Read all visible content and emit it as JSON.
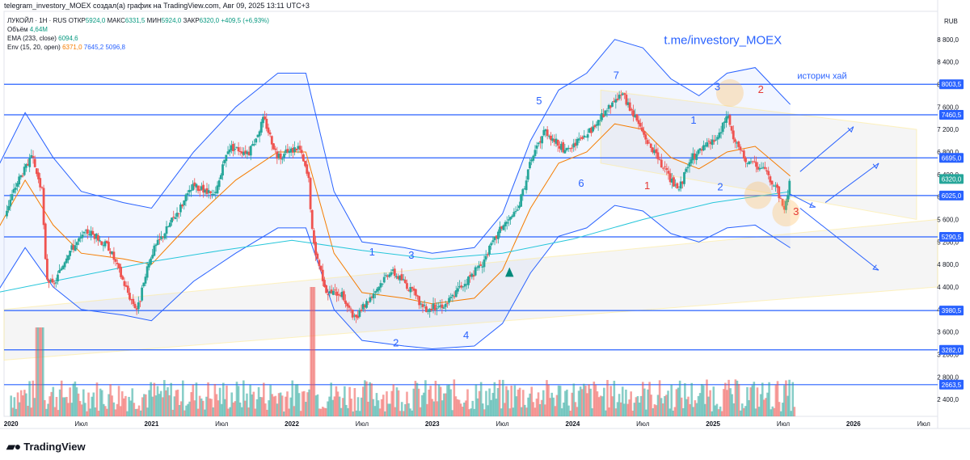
{
  "header": {
    "title": "telegram_investory_MOEX создал(а) график на TradingView.com, Авг 09, 2025 13:11 UTC+3"
  },
  "legend": {
    "symbol": "ЛУКОЙЛ · 1Н · RUS",
    "o_label": "ОТКР",
    "o_val": "5924,0",
    "h_label": "МАКС",
    "h_val": "6331,5",
    "l_label": "МИН",
    "l_val": "5924,0",
    "c_label": "ЗАКР",
    "c_val": "6320,0",
    "change": "+409,5 (+6,93%)",
    "volume_label": "Объём",
    "volume_val": "4,64M",
    "ema_label": "EMA (233, close)",
    "ema_val": "6094,6",
    "env_label": "Env (15, 20, open)",
    "env_basis": "6371,0",
    "env_upper": "7645,2",
    "env_lower": "5096,8"
  },
  "currency": "RUB",
  "footer": {
    "brand": "TradingView"
  },
  "annotations": {
    "channel": "t.me/investory_MOEX",
    "ath": "историч хай"
  },
  "colors": {
    "up": "#26a69a",
    "down": "#ef5350",
    "level": "#2962ff",
    "ema": "#26c6da",
    "env_basis": "#f57c00",
    "env_band": "#2962ff",
    "wave_blue": "#2962ff",
    "wave_red": "#e53935"
  },
  "chart_data": {
    "type": "candlestick",
    "title": "ЛУКОЙЛ · 1Н · RUS",
    "x_ticks": [
      "2020",
      "Июл",
      "2021",
      "Июл",
      "2022",
      "Июл",
      "2023",
      "Июл",
      "2024",
      "Июл",
      "2025",
      "Июл",
      "2026",
      "Июл"
    ],
    "x_tick_years": [
      2020.0,
      2020.5,
      2021.0,
      2021.5,
      2022.0,
      2022.5,
      2023.0,
      2023.5,
      2024.0,
      2024.5,
      2025.0,
      2025.5,
      2026.0,
      2026.5
    ],
    "y_ticks": [
      2400,
      2800,
      3200,
      3600,
      4000,
      4400,
      4800,
      5200,
      5600,
      6000,
      6400,
      6800,
      7200,
      7600,
      8000,
      8400,
      8800
    ],
    "y_tick_labels": [
      "2 400,0",
      "2 800,0",
      "3 200,0",
      "3 600,0",
      "4 000,0",
      "4 400,0",
      "4 800,0",
      "5 200,0",
      "5 600,0",
      "6 000,0",
      "6 400,0",
      "6 800,0",
      "7 200,0",
      "7 600,0",
      "8 000,0",
      "8 400,0",
      "8 800,0"
    ],
    "ylim": [
      2100,
      9300
    ],
    "levels": [
      {
        "value": 8003.5,
        "label": "8003,5"
      },
      {
        "value": 7460.5,
        "label": "7460,5"
      },
      {
        "value": 6695.0,
        "label": "6695,0"
      },
      {
        "value": 6320.0,
        "label": "6320,0",
        "current": true
      },
      {
        "value": 6025.0,
        "label": "6025,0"
      },
      {
        "value": 5290.5,
        "label": "5290,5"
      },
      {
        "value": 3980.5,
        "label": "3980,5"
      },
      {
        "value": 3282.0,
        "label": "3282,0"
      },
      {
        "value": 2663.5,
        "label": "2663,5"
      }
    ],
    "price_path": [
      [
        2019.9,
        5350
      ],
      [
        2020.05,
        6300
      ],
      [
        2020.15,
        6700
      ],
      [
        2020.22,
        6100
      ],
      [
        2020.25,
        4600
      ],
      [
        2020.3,
        4400
      ],
      [
        2020.4,
        5000
      ],
      [
        2020.55,
        5400
      ],
      [
        2020.7,
        5100
      ],
      [
        2020.85,
        4200
      ],
      [
        2020.9,
        4000
      ],
      [
        2021.0,
        5000
      ],
      [
        2021.15,
        5600
      ],
      [
        2021.3,
        6200
      ],
      [
        2021.45,
        6000
      ],
      [
        2021.55,
        6900
      ],
      [
        2021.7,
        6800
      ],
      [
        2021.8,
        7400
      ],
      [
        2021.9,
        6700
      ],
      [
        2022.05,
        6900
      ],
      [
        2022.12,
        6300
      ],
      [
        2022.15,
        5200
      ],
      [
        2022.25,
        4300
      ],
      [
        2022.35,
        4300
      ],
      [
        2022.45,
        3800
      ],
      [
        2022.55,
        4200
      ],
      [
        2022.7,
        4700
      ],
      [
        2022.8,
        4500
      ],
      [
        2022.95,
        4000
      ],
      [
        2023.1,
        4100
      ],
      [
        2023.2,
        4400
      ],
      [
        2023.35,
        4800
      ],
      [
        2023.5,
        5500
      ],
      [
        2023.6,
        5700
      ],
      [
        2023.7,
        6600
      ],
      [
        2023.8,
        7200
      ],
      [
        2023.95,
        6800
      ],
      [
        2024.1,
        7100
      ],
      [
        2024.2,
        7400
      ],
      [
        2024.3,
        7700
      ],
      [
        2024.35,
        7850
      ],
      [
        2024.45,
        7400
      ],
      [
        2024.55,
        6900
      ],
      [
        2024.65,
        6500
      ],
      [
        2024.75,
        6100
      ],
      [
        2024.85,
        6700
      ],
      [
        2024.95,
        6900
      ],
      [
        2025.05,
        7100
      ],
      [
        2025.1,
        7500
      ],
      [
        2025.15,
        7000
      ],
      [
        2025.25,
        6600
      ],
      [
        2025.35,
        6500
      ],
      [
        2025.45,
        6200
      ],
      [
        2025.5,
        5800
      ],
      [
        2025.52,
        5900
      ],
      [
        2025.55,
        6320
      ]
    ],
    "ema233_path": [
      [
        2019.9,
        4300
      ],
      [
        2020.5,
        4600
      ],
      [
        2021.0,
        4850
      ],
      [
        2021.5,
        5050
      ],
      [
        2022.0,
        5230
      ],
      [
        2022.5,
        5050
      ],
      [
        2023.0,
        4900
      ],
      [
        2023.5,
        5000
      ],
      [
        2024.0,
        5250
      ],
      [
        2024.5,
        5600
      ],
      [
        2025.0,
        5900
      ],
      [
        2025.55,
        6095
      ]
    ],
    "env_basis_path": [
      [
        2019.9,
        5400
      ],
      [
        2020.1,
        6300
      ],
      [
        2020.3,
        5500
      ],
      [
        2020.5,
        5000
      ],
      [
        2020.8,
        4900
      ],
      [
        2021.0,
        4800
      ],
      [
        2021.3,
        5600
      ],
      [
        2021.6,
        6300
      ],
      [
        2021.9,
        6800
      ],
      [
        2022.1,
        6800
      ],
      [
        2022.3,
        5000
      ],
      [
        2022.5,
        4300
      ],
      [
        2022.8,
        4200
      ],
      [
        2023.0,
        4100
      ],
      [
        2023.3,
        4200
      ],
      [
        2023.5,
        4700
      ],
      [
        2023.7,
        5800
      ],
      [
        2023.9,
        6600
      ],
      [
        2024.1,
        6800
      ],
      [
        2024.3,
        7300
      ],
      [
        2024.5,
        7200
      ],
      [
        2024.7,
        6700
      ],
      [
        2024.9,
        6500
      ],
      [
        2025.1,
        6800
      ],
      [
        2025.3,
        6900
      ],
      [
        2025.55,
        6371
      ]
    ],
    "env_upper_path": [
      [
        2019.9,
        6500
      ],
      [
        2020.1,
        7500
      ],
      [
        2020.3,
        6700
      ],
      [
        2020.5,
        6100
      ],
      [
        2020.8,
        5900
      ],
      [
        2021.0,
        5800
      ],
      [
        2021.3,
        6800
      ],
      [
        2021.6,
        7600
      ],
      [
        2021.9,
        8200
      ],
      [
        2022.1,
        8200
      ],
      [
        2022.3,
        6100
      ],
      [
        2022.5,
        5200
      ],
      [
        2022.8,
        5100
      ],
      [
        2023.0,
        5000
      ],
      [
        2023.3,
        5100
      ],
      [
        2023.5,
        5700
      ],
      [
        2023.7,
        7000
      ],
      [
        2023.9,
        7900
      ],
      [
        2024.1,
        8200
      ],
      [
        2024.3,
        8800
      ],
      [
        2024.5,
        8650
      ],
      [
        2024.7,
        8100
      ],
      [
        2024.9,
        7800
      ],
      [
        2025.1,
        8200
      ],
      [
        2025.3,
        8300
      ],
      [
        2025.55,
        7645
      ]
    ],
    "env_lower_path": [
      [
        2019.9,
        4300
      ],
      [
        2020.1,
        5100
      ],
      [
        2020.3,
        4400
      ],
      [
        2020.5,
        4000
      ],
      [
        2020.8,
        3900
      ],
      [
        2021.0,
        3800
      ],
      [
        2021.3,
        4500
      ],
      [
        2021.6,
        5000
      ],
      [
        2021.9,
        5450
      ],
      [
        2022.1,
        5450
      ],
      [
        2022.3,
        4000
      ],
      [
        2022.5,
        3450
      ],
      [
        2022.8,
        3350
      ],
      [
        2023.0,
        3300
      ],
      [
        2023.3,
        3350
      ],
      [
        2023.5,
        3750
      ],
      [
        2023.7,
        4650
      ],
      [
        2023.9,
        5300
      ],
      [
        2024.1,
        5450
      ],
      [
        2024.3,
        5850
      ],
      [
        2024.5,
        5750
      ],
      [
        2024.7,
        5350
      ],
      [
        2024.9,
        5200
      ],
      [
        2025.1,
        5450
      ],
      [
        2025.3,
        5500
      ],
      [
        2025.55,
        5097
      ]
    ],
    "waves": [
      {
        "label": "1",
        "x": 2022.55,
        "y": 4960,
        "color": "blue"
      },
      {
        "label": "2",
        "x": 2022.72,
        "y": 3340,
        "color": "blue"
      },
      {
        "label": "3",
        "x": 2022.83,
        "y": 4900,
        "color": "blue"
      },
      {
        "label": "4",
        "x": 2023.22,
        "y": 3480,
        "color": "blue"
      },
      {
        "label": "5",
        "x": 2023.74,
        "y": 7650,
        "color": "blue"
      },
      {
        "label": "6",
        "x": 2024.04,
        "y": 6180,
        "color": "blue"
      },
      {
        "label": "7",
        "x": 2024.29,
        "y": 8100,
        "color": "blue"
      },
      {
        "label": "1",
        "x": 2024.51,
        "y": 6140,
        "color": "red"
      },
      {
        "label": "1",
        "x": 2024.84,
        "y": 7300,
        "color": "blue"
      },
      {
        "label": "2",
        "x": 2025.03,
        "y": 6120,
        "color": "blue"
      },
      {
        "label": "3",
        "x": 2025.01,
        "y": 7900,
        "color": "blue"
      },
      {
        "label": "2",
        "x": 2025.32,
        "y": 7850,
        "color": "red"
      },
      {
        "label": "3",
        "x": 2025.57,
        "y": 5680,
        "color": "red"
      }
    ]
  }
}
